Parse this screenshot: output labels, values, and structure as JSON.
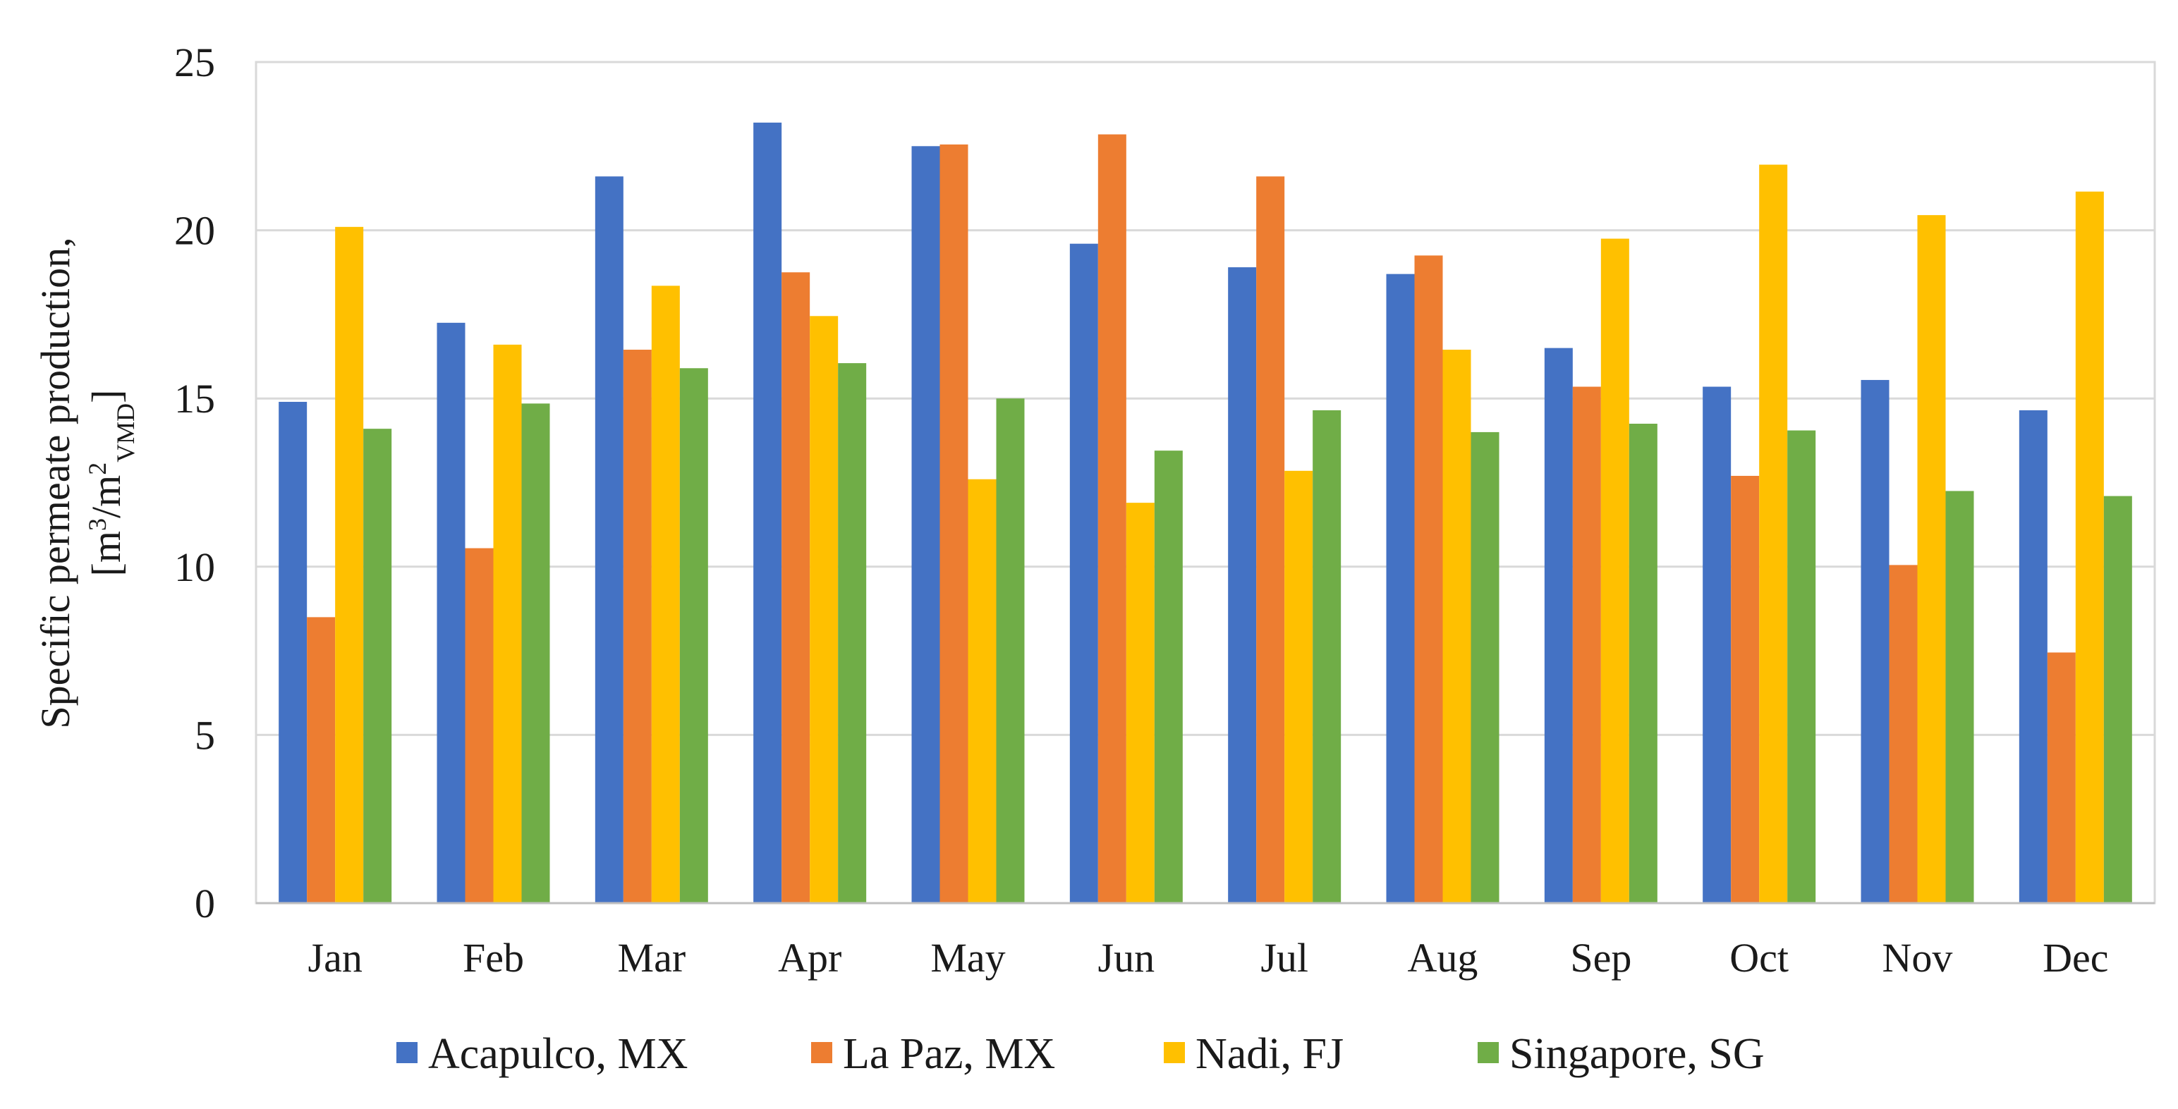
{
  "chart_data": {
    "type": "bar",
    "categories": [
      "Jan",
      "Feb",
      "Mar",
      "Apr",
      "May",
      "Jun",
      "Jul",
      "Aug",
      "Sep",
      "Oct",
      "Nov",
      "Dec"
    ],
    "series": [
      {
        "name": "Acapulco, MX",
        "color": "#4472C4",
        "values": [
          14.9,
          17.25,
          21.6,
          23.2,
          22.5,
          19.6,
          18.9,
          18.7,
          16.5,
          15.35,
          15.55,
          14.65
        ]
      },
      {
        "name": "La Paz, MX",
        "color": "#ED7D31",
        "values": [
          8.5,
          10.55,
          16.45,
          18.75,
          22.55,
          22.85,
          21.6,
          19.25,
          15.35,
          12.7,
          10.05,
          7.45
        ]
      },
      {
        "name": "Nadi, FJ",
        "color": "#FFC000",
        "values": [
          20.1,
          16.6,
          18.35,
          17.45,
          12.6,
          11.9,
          12.85,
          16.45,
          19.75,
          21.95,
          20.45,
          21.15
        ]
      },
      {
        "name": "Singapore, SG",
        "color": "#70AD47",
        "values": [
          14.1,
          14.85,
          15.9,
          16.05,
          15.0,
          13.45,
          14.65,
          14.0,
          14.25,
          14.05,
          12.25,
          12.1
        ]
      }
    ],
    "yticks": [
      "0",
      "5",
      "10",
      "15",
      "20",
      "25"
    ],
    "ylim": [
      0,
      25
    ],
    "ylabel": {
      "line1": "Specific permeate production,",
      "open": "[m",
      "sup1": "3",
      "mid": "/m",
      "sup2": "2",
      "sub": "VMD",
      "close": "]"
    },
    "xlabel": "",
    "title": "",
    "grid": true,
    "legend_position": "bottom"
  }
}
